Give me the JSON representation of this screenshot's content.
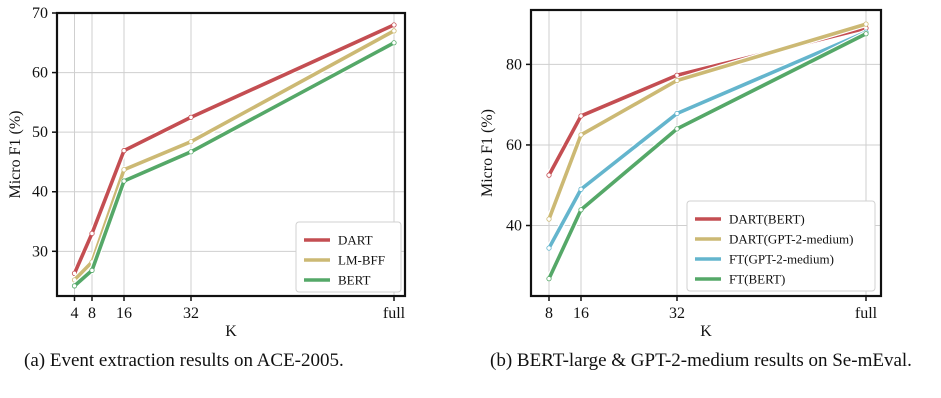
{
  "chart_data": [
    {
      "type": "line",
      "xlabel": "K",
      "ylabel": "Micro F1 (%)",
      "x": [
        "4",
        "8",
        "16",
        "32",
        "full"
      ],
      "ylim": [
        22.5,
        70
      ],
      "yticks": [
        30,
        40,
        50,
        60,
        70
      ],
      "grid": true,
      "legend_position": "bottom-right",
      "series": [
        {
          "name": "DART",
          "color": "#c44e52",
          "values": [
            26.3,
            33.0,
            46.9,
            52.5,
            68.0
          ]
        },
        {
          "name": "LM-BFF",
          "color": "#ccb974",
          "values": [
            25.2,
            28.2,
            43.7,
            48.4,
            67.0
          ]
        },
        {
          "name": "BERT",
          "color": "#55a868",
          "values": [
            24.2,
            26.8,
            41.8,
            46.7,
            65.0
          ]
        }
      ],
      "caption": "(a) Event extraction results on ACE-2005."
    },
    {
      "type": "line",
      "xlabel": "K",
      "ylabel": "Micro F1 (%)",
      "x": [
        "8",
        "16",
        "32",
        "full"
      ],
      "ylim": [
        22.5,
        93.5
      ],
      "yticks": [
        40,
        60,
        80
      ],
      "grid": true,
      "legend_position": "bottom-right",
      "series": [
        {
          "name": "DART(BERT)",
          "color": "#c44e52",
          "values": [
            52.5,
            67.2,
            77.3,
            89.0
          ]
        },
        {
          "name": "DART(GPT-2-medium)",
          "color": "#ccb974",
          "values": [
            41.6,
            62.5,
            76.0,
            90.0
          ]
        },
        {
          "name": "FT(GPT-2-medium)",
          "color": "#64b5cd",
          "values": [
            34.4,
            49.0,
            67.8,
            88.0
          ]
        },
        {
          "name": "FT(BERT)",
          "color": "#55a868",
          "values": [
            26.8,
            43.9,
            64.0,
            87.6
          ]
        }
      ],
      "caption": "(b) BERT-large & GPT-2-medium results on SemEval."
    }
  ],
  "captions": {
    "a": "(a) Event extraction results on ACE-2005.",
    "b": "(b) BERT-large & GPT-2-medium results on Se-mEval."
  }
}
